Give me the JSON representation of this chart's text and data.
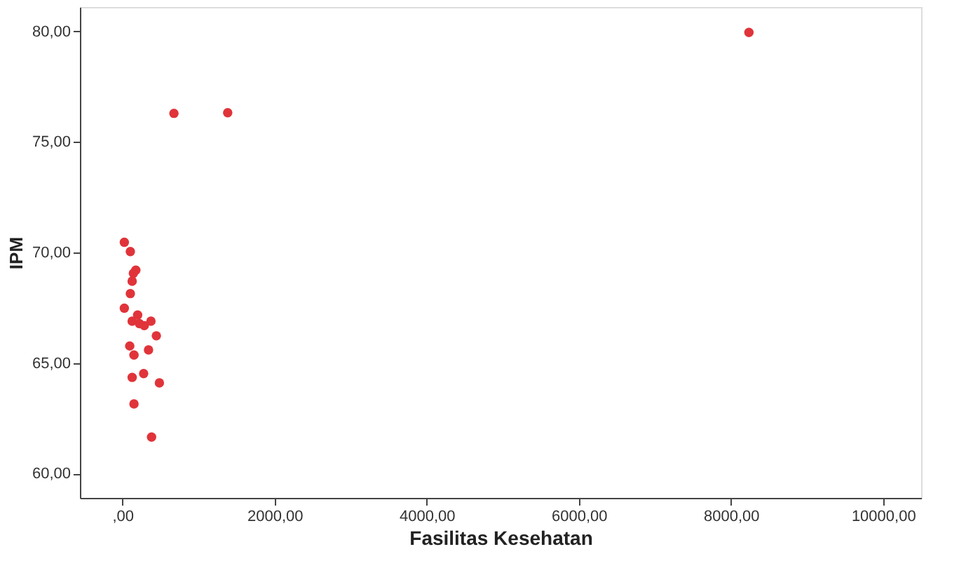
{
  "chart_data": {
    "type": "scatter",
    "xlabel": "Fasilitas Kesehatan",
    "ylabel": "IPM",
    "x": [
      8236,
      676,
      1383,
      24,
      103,
      175,
      143,
      127,
      103,
      24,
      199,
      127,
      223,
      286,
      374,
      445,
      95,
      342,
      151,
      127,
      278,
      485,
      151,
      382
    ],
    "series": [
      {
        "color": "#e0343a",
        "values": [
          79.95,
          76.29,
          76.32,
          70.46,
          70.04,
          69.2,
          69.06,
          68.7,
          68.14,
          67.48,
          67.17,
          66.89,
          66.78,
          66.69,
          66.89,
          66.23,
          65.77,
          65.59,
          65.36,
          64.35,
          64.52,
          64.1,
          63.15,
          61.65
        ]
      }
    ],
    "xlim": [
      -560,
      10500
    ],
    "ylim": [
      58.9,
      81.1
    ],
    "xticks": [
      {
        "value": 0,
        "label": ",00"
      },
      {
        "value": 2000,
        "label": "2000,00"
      },
      {
        "value": 4000,
        "label": "4000,00"
      },
      {
        "value": 6000,
        "label": "6000,00"
      },
      {
        "value": 8000,
        "label": "8000,00"
      },
      {
        "value": 10000,
        "label": "10000,00"
      }
    ],
    "yticks": [
      {
        "value": 60,
        "label": "60,00"
      },
      {
        "value": 65,
        "label": "65,00"
      },
      {
        "value": 70,
        "label": "70,00"
      },
      {
        "value": 75,
        "label": "75,00"
      },
      {
        "value": 80,
        "label": "80,00"
      }
    ],
    "grid": false,
    "legend": false,
    "marker": "circle"
  }
}
